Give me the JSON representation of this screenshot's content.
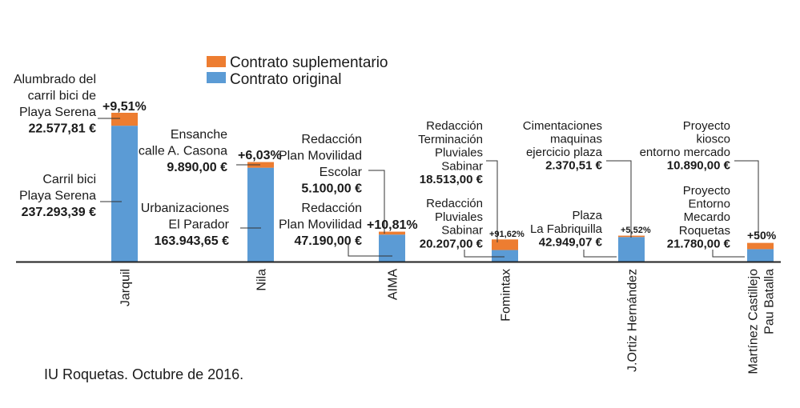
{
  "chart_data": {
    "type": "bar",
    "stacked": true,
    "colors": {
      "suplementario": "#ED7D31",
      "original": "#5B9BD5"
    },
    "legend": {
      "placement": "top-center",
      "entries": [
        "Contrato suplementario",
        "Contrato original"
      ]
    },
    "categories": [
      "Jarquil",
      "Nila",
      "AIMA",
      "Fomintax",
      "J.Ortiz Hernández",
      [
        "Martínez Castillejo",
        "Pau Batalla"
      ]
    ],
    "series": [
      {
        "name": "Contrato original",
        "values": [
          237293.39,
          163943.65,
          47190.0,
          20207.0,
          42949.07,
          21780.0
        ]
      },
      {
        "name": "Contrato suplementario",
        "values": [
          22577.81,
          9890.0,
          5100.0,
          18513.0,
          2370.51,
          10890.0
        ]
      }
    ],
    "percent_labels": [
      "+9,51%",
      "+6,03%",
      "+10,81%",
      "+91,62%",
      "+5,52%",
      "+50%"
    ],
    "annotations": [
      {
        "supl": [
          "Alumbrado del",
          "carril bici de",
          "Playa Serena",
          "22.577,81 €"
        ],
        "orig": [
          "Carril bici",
          "Playa Serena",
          "237.293,39 €"
        ]
      },
      {
        "supl": [
          "Ensanche",
          "calle A. Casona",
          "9.890,00 €"
        ],
        "orig": [
          "Urbanizaciones",
          "El Parador",
          "163.943,65  €"
        ]
      },
      {
        "supl": [
          "Redacción",
          "Plan Movilidad",
          "Escolar",
          "5.100,00  €"
        ],
        "orig": [
          "Redacción",
          "Plan Movilidad",
          "47.190,00  €"
        ]
      },
      {
        "supl": [
          "Redacción",
          "Terminación",
          "Pluviales",
          "Sabinar",
          "18.513,00  €"
        ],
        "orig": [
          "Redacción",
          "Pluviales",
          "Sabinar",
          "20.207,00  €"
        ]
      },
      {
        "supl": [
          "Cimentaciones",
          "maquinas",
          "ejercicio plaza",
          "2.370,51  €"
        ],
        "orig": [
          "Plaza",
          "La Fabriquilla",
          "42.949,07 €"
        ]
      },
      {
        "supl": [
          "Proyecto",
          "kiosco",
          "entorno mercado",
          "10.890,00  €"
        ],
        "orig": [
          "Proyecto",
          "Entorno",
          "Mecardo",
          "Roquetas",
          "21.780,00 €"
        ]
      }
    ],
    "grid": false,
    "y_axis_visible": false
  },
  "footer": {
    "source": "IU Roquetas. Octubre de 2016."
  }
}
